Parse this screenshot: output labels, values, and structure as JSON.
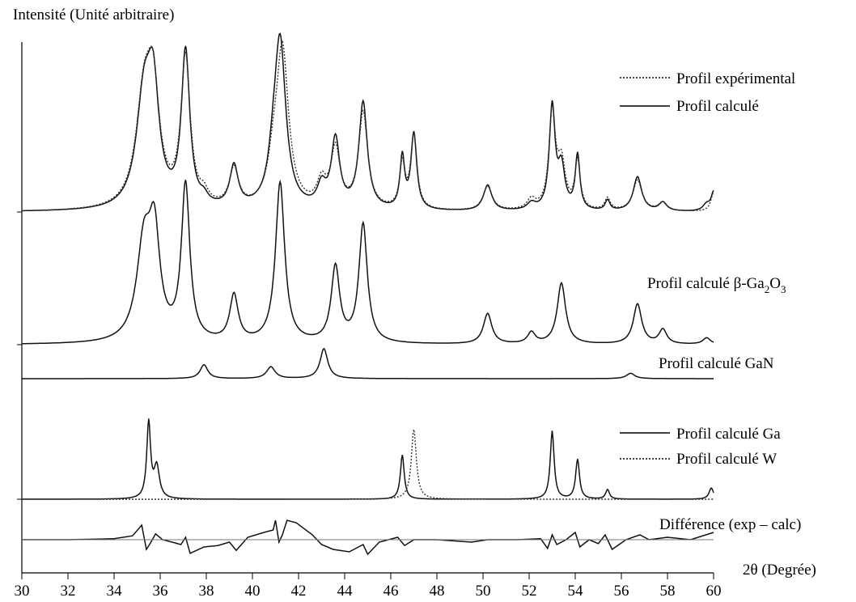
{
  "chart_data": {
    "type": "line",
    "ylabel": "Intensité (Unité arbitraire)",
    "xlabel": "2θ (Degrée)",
    "xlim": [
      30,
      60
    ],
    "x_ticks": [
      "30",
      "32",
      "34",
      "36",
      "38",
      "40",
      "42",
      "44",
      "46",
      "48",
      "50",
      "52",
      "54",
      "56",
      "58",
      "60"
    ],
    "grid": false,
    "legend_top": {
      "experimental": "Profil expérimental",
      "calculated": "Profil calculé"
    },
    "panel_labels": {
      "ga2o3_prefix": "Profil calculé β-Ga",
      "ga2o3_sub1": "2",
      "ga2o3_mid": "O",
      "ga2o3_sub2": "3",
      "gan": "Profil calculé GaN",
      "ga": "Profil calculé Ga",
      "w": "Profil calculé W",
      "diff": "Différence (exp – calc)"
    },
    "series": [
      {
        "key": "calc_total",
        "name": "Profil calculé",
        "style": "solid",
        "baseline": 0,
        "peaks": [
          [
            35.3,
            0.62,
            0.4
          ],
          [
            35.7,
            0.6,
            0.3
          ],
          [
            37.1,
            0.9,
            0.22
          ],
          [
            37.9,
            0.04,
            0.2
          ],
          [
            39.2,
            0.24,
            0.22
          ],
          [
            40.9,
            0.15,
            0.25
          ],
          [
            41.2,
            0.96,
            0.3
          ],
          [
            43.0,
            0.12,
            0.22
          ],
          [
            43.6,
            0.4,
            0.22
          ],
          [
            44.8,
            0.62,
            0.22
          ],
          [
            46.5,
            0.3,
            0.12
          ],
          [
            47.0,
            0.44,
            0.15
          ],
          [
            50.2,
            0.15,
            0.22
          ],
          [
            52.1,
            0.04,
            0.22
          ],
          [
            53.0,
            0.6,
            0.15
          ],
          [
            53.4,
            0.24,
            0.18
          ],
          [
            54.1,
            0.32,
            0.12
          ],
          [
            55.4,
            0.06,
            0.12
          ],
          [
            56.7,
            0.2,
            0.22
          ],
          [
            57.8,
            0.05,
            0.2
          ],
          [
            59.7,
            0.04,
            0.2
          ],
          [
            60.0,
            0.11,
            0.12
          ]
        ]
      },
      {
        "key": "exp_total",
        "name": "Profil expérimental",
        "style": "dotted",
        "baseline": 0,
        "peaks": [
          [
            35.3,
            0.62,
            0.42
          ],
          [
            35.7,
            0.58,
            0.32
          ],
          [
            37.1,
            0.86,
            0.24
          ],
          [
            37.9,
            0.06,
            0.22
          ],
          [
            39.2,
            0.22,
            0.24
          ],
          [
            40.9,
            0.17,
            0.27
          ],
          [
            41.3,
            0.92,
            0.32
          ],
          [
            43.0,
            0.14,
            0.24
          ],
          [
            43.6,
            0.34,
            0.24
          ],
          [
            44.8,
            0.56,
            0.24
          ],
          [
            46.5,
            0.26,
            0.14
          ],
          [
            47.0,
            0.44,
            0.16
          ],
          [
            50.2,
            0.14,
            0.24
          ],
          [
            52.1,
            0.06,
            0.22
          ],
          [
            53.0,
            0.56,
            0.17
          ],
          [
            53.4,
            0.26,
            0.2
          ],
          [
            54.1,
            0.28,
            0.14
          ],
          [
            55.4,
            0.07,
            0.14
          ],
          [
            56.7,
            0.18,
            0.24
          ],
          [
            57.8,
            0.05,
            0.22
          ],
          [
            60.0,
            0.11,
            0.14
          ]
        ]
      },
      {
        "key": "ga2o3",
        "name": "Profil calculé β-Ga2O3",
        "style": "solid",
        "peaks": [
          [
            35.3,
            0.6,
            0.38
          ],
          [
            35.75,
            0.6,
            0.28
          ],
          [
            37.1,
            0.97,
            0.22
          ],
          [
            39.2,
            0.29,
            0.22
          ],
          [
            41.2,
            1.0,
            0.24
          ],
          [
            43.6,
            0.47,
            0.22
          ],
          [
            44.8,
            0.74,
            0.22
          ],
          [
            50.2,
            0.19,
            0.22
          ],
          [
            52.1,
            0.07,
            0.2
          ],
          [
            53.4,
            0.38,
            0.22
          ],
          [
            56.7,
            0.25,
            0.22
          ],
          [
            57.8,
            0.09,
            0.2
          ],
          [
            59.7,
            0.04,
            0.2
          ]
        ]
      },
      {
        "key": "gan",
        "name": "Profil calculé GaN",
        "style": "solid",
        "peaks": [
          [
            37.9,
            0.26,
            0.2
          ],
          [
            40.8,
            0.22,
            0.22
          ],
          [
            43.1,
            0.56,
            0.2
          ],
          [
            56.4,
            0.1,
            0.22
          ]
        ]
      },
      {
        "key": "ga",
        "name": "Profil calculé Ga",
        "style": "solid",
        "peaks": [
          [
            35.5,
            0.96,
            0.1
          ],
          [
            35.85,
            0.4,
            0.14
          ],
          [
            46.5,
            0.56,
            0.1
          ],
          [
            53.0,
            0.86,
            0.1
          ],
          [
            54.1,
            0.5,
            0.1
          ],
          [
            55.4,
            0.12,
            0.1
          ],
          [
            59.9,
            0.14,
            0.12
          ]
        ]
      },
      {
        "key": "w",
        "name": "Profil calculé W",
        "style": "dotted",
        "peaks": [
          [
            47.0,
            0.88,
            0.13
          ]
        ]
      },
      {
        "key": "diff",
        "name": "Différence (exp – calc)",
        "style": "solid",
        "points": [
          [
            30,
            0.0
          ],
          [
            32,
            0.0
          ],
          [
            34,
            0.02
          ],
          [
            34.8,
            0.08
          ],
          [
            35.2,
            0.3
          ],
          [
            35.4,
            -0.2
          ],
          [
            35.6,
            -0.05
          ],
          [
            35.8,
            0.12
          ],
          [
            36.1,
            0.0
          ],
          [
            36.6,
            -0.06
          ],
          [
            36.9,
            -0.1
          ],
          [
            37.1,
            0.05
          ],
          [
            37.3,
            -0.28
          ],
          [
            37.9,
            -0.15
          ],
          [
            38.5,
            -0.12
          ],
          [
            39.0,
            -0.05
          ],
          [
            39.3,
            -0.22
          ],
          [
            39.8,
            0.05
          ],
          [
            40.5,
            0.15
          ],
          [
            40.9,
            0.2
          ],
          [
            41.0,
            0.4
          ],
          [
            41.15,
            -0.05
          ],
          [
            41.3,
            0.1
          ],
          [
            41.5,
            0.4
          ],
          [
            41.9,
            0.35
          ],
          [
            42.6,
            0.1
          ],
          [
            43.0,
            -0.1
          ],
          [
            43.5,
            -0.2
          ],
          [
            44.2,
            -0.25
          ],
          [
            44.8,
            -0.1
          ],
          [
            45.0,
            -0.3
          ],
          [
            45.5,
            -0.05
          ],
          [
            46.3,
            0.05
          ],
          [
            46.6,
            -0.12
          ],
          [
            47.0,
            0.0
          ],
          [
            48.0,
            0.0
          ],
          [
            49.5,
            -0.05
          ],
          [
            50.2,
            0.0
          ],
          [
            51.5,
            0.0
          ],
          [
            52.5,
            0.02
          ],
          [
            52.8,
            -0.18
          ],
          [
            53.0,
            0.1
          ],
          [
            53.2,
            -0.1
          ],
          [
            53.6,
            0.0
          ],
          [
            54.0,
            0.15
          ],
          [
            54.2,
            -0.15
          ],
          [
            54.6,
            0.0
          ],
          [
            55.0,
            -0.08
          ],
          [
            55.3,
            0.1
          ],
          [
            55.6,
            -0.2
          ],
          [
            56.2,
            0.0
          ],
          [
            56.8,
            0.1
          ],
          [
            57.2,
            0.0
          ],
          [
            58.0,
            0.05
          ],
          [
            59.0,
            0.0
          ],
          [
            60.0,
            0.15
          ]
        ]
      }
    ]
  }
}
